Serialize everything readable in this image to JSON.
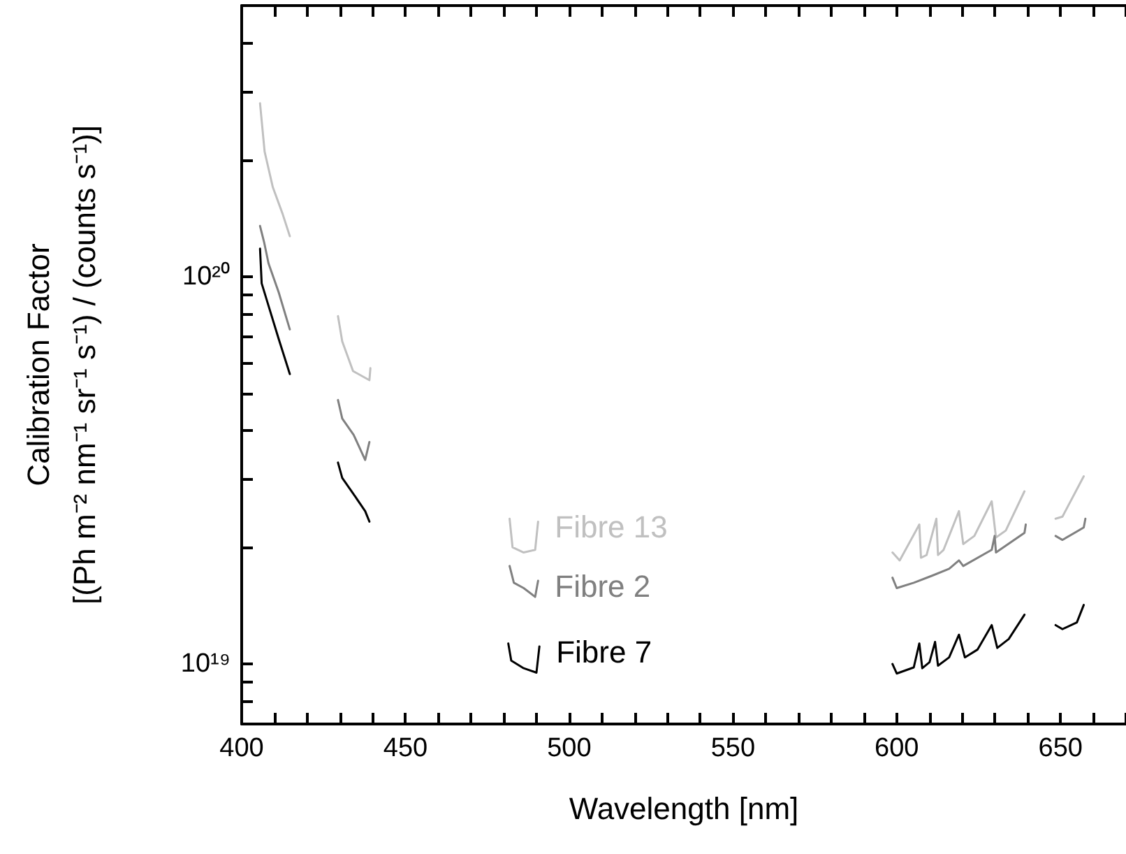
{
  "chart_data": {
    "type": "line",
    "xlabel": "Wavelength [nm]",
    "ylabel": "Calibration Factor\n[(Ph m⁻² nm⁻¹ sr⁻¹ s⁻¹) / (counts s⁻¹)]",
    "log": "y",
    "xlim": [
      400,
      670
    ],
    "ylim": [
      7e+18,
      5e+20
    ],
    "xticks": [
      400,
      {
        "value": 410,
        "label": null
      },
      {
        "value": 420,
        "label": null
      },
      {
        "value": 430,
        "label": null
      },
      {
        "value": 440,
        "label": null
      },
      450,
      {
        "value": 460,
        "label": null
      },
      {
        "value": 470,
        "label": null
      },
      {
        "value": 480,
        "label": null
      },
      {
        "value": 490,
        "label": null
      },
      500,
      {
        "value": 510,
        "label": null
      },
      {
        "value": 520,
        "label": null
      },
      {
        "value": 530,
        "label": null
      },
      {
        "value": 540,
        "label": null
      },
      550,
      {
        "value": 560,
        "label": null
      },
      {
        "value": 570,
        "label": null
      },
      {
        "value": 580,
        "label": null
      },
      {
        "value": 590,
        "label": null
      },
      600,
      {
        "value": 610,
        "label": null
      },
      {
        "value": 620,
        "label": null
      },
      {
        "value": 630,
        "label": null
      },
      {
        "value": 640,
        "label": null
      },
      650,
      {
        "value": 660,
        "label": null
      },
      {
        "value": 670,
        "label": null
      }
    ],
    "yticks": [
      {
        "value": 7e+18,
        "label": null
      },
      {
        "value": 8e+18,
        "label": null
      },
      {
        "value": 9e+18,
        "label": null
      },
      {
        "value": 1e+19,
        "label": "10¹⁹"
      },
      {
        "value": 2e+19,
        "label": null
      },
      {
        "value": 3e+19,
        "label": null
      },
      {
        "value": 4e+19,
        "label": null
      },
      {
        "value": 5e+19,
        "label": null
      },
      {
        "value": 6e+19,
        "label": null
      },
      {
        "value": 7e+19,
        "label": null
      },
      {
        "value": 8e+19,
        "label": null
      },
      {
        "value": 9e+19,
        "label": null
      },
      {
        "value": 1e+20,
        "label": "10²⁰"
      },
      {
        "value": 2e+20,
        "label": null
      },
      {
        "value": 3e+20,
        "label": null
      },
      {
        "value": 4e+20,
        "label": null
      }
    ],
    "legend": false,
    "marker": "none",
    "line_style": "solid",
    "series": [
      {
        "name": "Fibre 13",
        "color": "#c0c0c0",
        "x": [
          405.6,
          407,
          409.5,
          412.5,
          414.7,
          422,
          429.4,
          430.7,
          434,
          439,
          439.3,
          460,
          481.8,
          482.7,
          486.1,
          489.6,
          490.5,
          545,
          598.7,
          600.9,
          606.9,
          607.4,
          609.1,
          612.1,
          612.6,
          614.3,
          619,
          620.3,
          623.7,
          629,
          630.3,
          633.3,
          639,
          644,
          648.5,
          650.6,
          657.1
        ],
        "values": [
          2.8e+20,
          2.1e+20,
          1.7e+20,
          1.45e+20,
          1.27e+20,
          null,
          7.9e+19,
          6.8e+19,
          5.7e+19,
          5.4e+19,
          5.8e+19,
          null,
          2.37e+19,
          2e+19,
          1.94e+19,
          1.97e+19,
          2.33e+19,
          null,
          1.94e+19,
          1.85e+19,
          2.29e+19,
          1.88e+19,
          1.91e+19,
          2.37e+19,
          1.91e+19,
          1.97e+19,
          2.48e+19,
          2.04e+19,
          2.14e+19,
          2.63e+19,
          2.12e+19,
          2.21e+19,
          2.79e+19,
          null,
          2.37e+19,
          2.4e+19,
          3.05e+19
        ]
      },
      {
        "name": "Fibre 2",
        "color": "#808080",
        "x": [
          405.6,
          406.9,
          408.2,
          411.3,
          414.7,
          422,
          429.4,
          430.7,
          434.2,
          437.7,
          439,
          460,
          481.8,
          483.1,
          486.1,
          489.6,
          490.5,
          545,
          598.7,
          600,
          605.2,
          610.8,
          616,
          619,
          620.3,
          629,
          629.9,
          630.3,
          639,
          639.4,
          644,
          648.5,
          650.6,
          657.1,
          657.6
        ],
        "values": [
          1.35e+20,
          1.22e+20,
          1.08e+20,
          9.1e+19,
          7.3e+19,
          null,
          4.8e+19,
          4.3e+19,
          3.9e+19,
          3.36e+19,
          3.74e+19,
          null,
          1.79e+19,
          1.62e+19,
          1.57e+19,
          1.49e+19,
          1.64e+19,
          null,
          1.67e+19,
          1.57e+19,
          1.62e+19,
          1.69e+19,
          1.76e+19,
          1.85e+19,
          1.79e+19,
          1.97e+19,
          2.14e+19,
          1.94e+19,
          2.18e+19,
          2.29e+19,
          null,
          2.14e+19,
          2.09e+19,
          2.25e+19,
          2.37e+19
        ]
      },
      {
        "name": "Fibre 7",
        "color": "#000000",
        "x": [
          405.6,
          406.1,
          408.2,
          411.3,
          414.7,
          422,
          429.4,
          430.7,
          434.2,
          437.7,
          439,
          460,
          481.4,
          482.3,
          486.1,
          490,
          490.9,
          545,
          598.7,
          600,
          605.2,
          606.9,
          607.8,
          610,
          611.7,
          612.6,
          616,
          619,
          620.8,
          624.7,
          629,
          630.7,
          634.2,
          639,
          644,
          648.5,
          650.6,
          655,
          657.1
        ],
        "values": [
          1.18e+20,
          9.6e+19,
          8.4e+19,
          6.9e+19,
          5.6e+19,
          null,
          3.31e+19,
          3.02e+19,
          2.74e+19,
          2.48e+19,
          2.33e+19,
          null,
          1.13e+19,
          1.02e+19,
          9.75e+18,
          9.5e+18,
          1.11e+19,
          null,
          1e+19,
          9.45e+18,
          9.8e+18,
          1.13e+19,
          9.75e+18,
          1.01e+19,
          1.14e+19,
          9.9e+18,
          1.04e+19,
          1.19e+19,
          1.04e+19,
          1.09e+19,
          1.26e+19,
          1.1e+19,
          1.16e+19,
          1.34e+19,
          null,
          1.26e+19,
          1.23e+19,
          1.28e+19,
          1.42e+19
        ]
      }
    ]
  }
}
